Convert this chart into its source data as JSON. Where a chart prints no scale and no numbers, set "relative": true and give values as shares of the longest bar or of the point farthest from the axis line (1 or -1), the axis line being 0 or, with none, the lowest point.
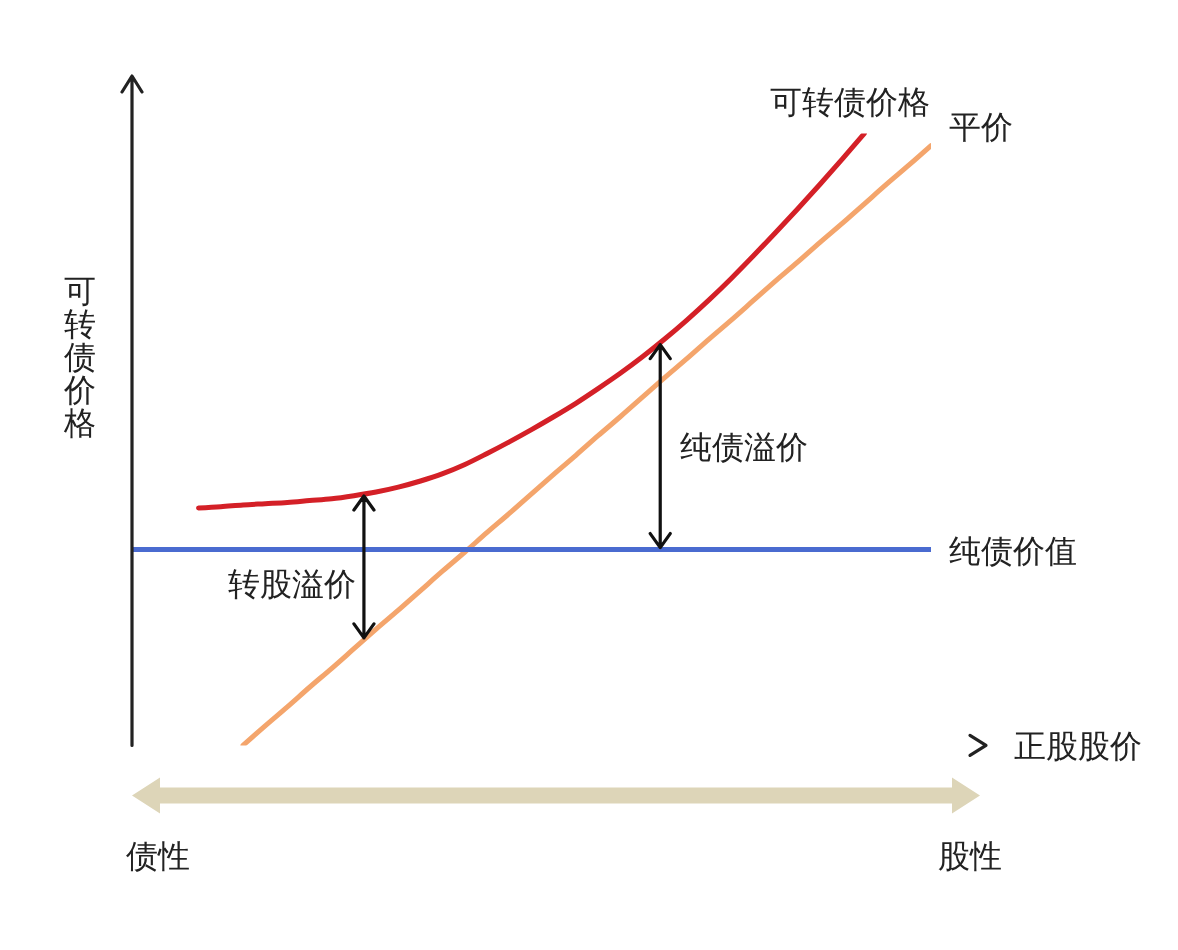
{
  "chart_data": {
    "type": "line",
    "relative": true,
    "xlabel": "正股股价",
    "ylabel": "可转债价格",
    "categories": [
      null,
      null,
      null,
      null,
      null,
      null,
      null,
      null,
      null,
      null,
      null,
      null,
      null,
      null,
      null,
      null,
      null,
      null,
      null,
      null,
      null,
      null,
      null,
      null,
      null,
      null,
      null,
      null,
      null,
      null,
      null,
      null,
      null,
      null,
      null,
      null,
      null
    ],
    "series": [
      {
        "name": "可转债价格",
        "color": "#d42027",
        "values": [
          null,
          null,
          null,
          0.388,
          0.39,
          0.393,
          0.395,
          0.397,
          0.4,
          0.403,
          0.408,
          0.414,
          0.422,
          0.432,
          0.444,
          0.459,
          0.477,
          0.496,
          0.516,
          0.537,
          0.559,
          0.583,
          0.608,
          0.635,
          0.664,
          0.695,
          0.728,
          0.763,
          0.8,
          0.838,
          0.877,
          0.917,
          0.958,
          1,
          null,
          null,
          null
        ]
      },
      {
        "name": "平价",
        "color": "#f4a56c",
        "values": [
          null,
          null,
          null,
          null,
          null,
          0,
          0.032,
          0.063,
          0.095,
          0.126,
          0.158,
          0.19,
          0.221,
          0.253,
          0.285,
          0.316,
          0.348,
          0.379,
          0.411,
          0.443,
          0.474,
          0.506,
          0.537,
          0.569,
          0.601,
          0.632,
          0.664,
          0.695,
          0.727,
          0.759,
          0.79,
          0.822,
          0.853,
          0.885,
          0.917,
          0.948,
          0.98
        ]
      },
      {
        "name": "纯债价值",
        "color": "#4a6bd0",
        "values": [
          0.32,
          0.32,
          0.32,
          0.32,
          0.32,
          0.32,
          0.32,
          0.32,
          0.32,
          0.32,
          0.32,
          0.32,
          0.32,
          0.32,
          0.32,
          0.32,
          0.32,
          0.32,
          0.32,
          0.32,
          0.32,
          0.32,
          0.32,
          0.32,
          0.32,
          0.32,
          0.32,
          0.32,
          0.32,
          0.32,
          0.32,
          0.32,
          0.32,
          0.32,
          0.32,
          0.32,
          0.32
        ]
      }
    ],
    "annotations": [
      "转股溢价",
      "纯债溢价",
      "债性",
      "股性"
    ]
  }
}
